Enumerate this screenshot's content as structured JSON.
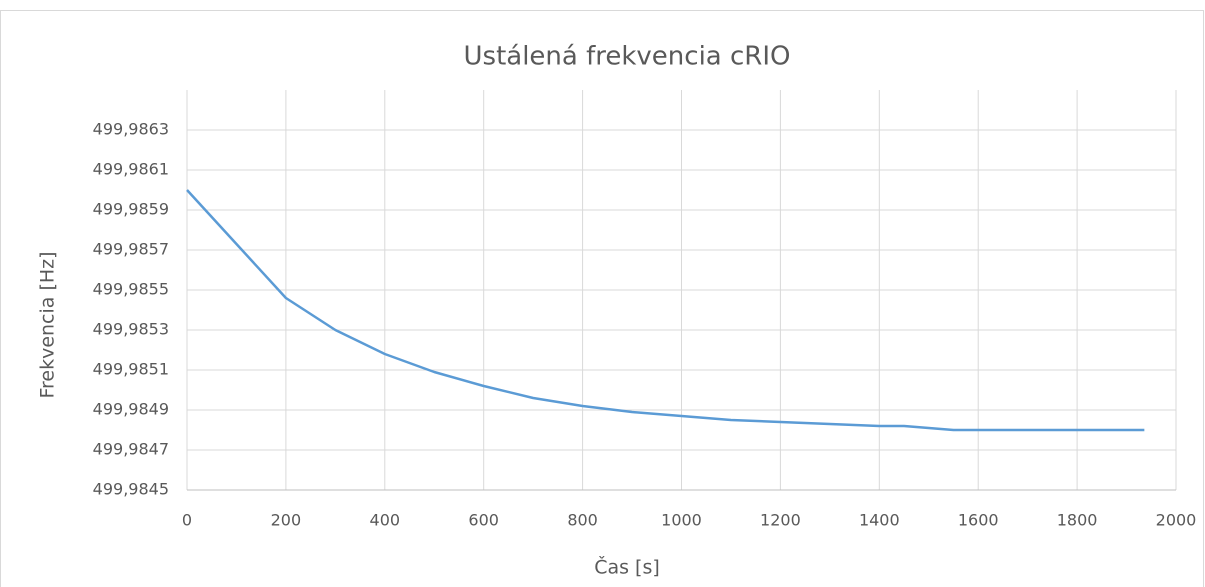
{
  "chart_data": {
    "type": "line",
    "title": "Ustálená frekvencia cRIO",
    "x_label": "Čas [s]",
    "y_label": "Frekvencia [Hz]",
    "x": [
      0,
      100,
      200,
      300,
      400,
      500,
      600,
      700,
      800,
      900,
      1000,
      1100,
      1200,
      1300,
      1400,
      1450,
      1500,
      1550,
      1700,
      1800,
      1936
    ],
    "series": [
      {
        "name": "Frekvencia",
        "color": "#5b9bd5",
        "values": [
          499.986,
          499.98573,
          499.98546,
          499.9853,
          499.98518,
          499.98509,
          499.98502,
          499.98496,
          499.98492,
          499.98489,
          499.98487,
          499.98485,
          499.98484,
          499.98483,
          499.98482,
          499.98482,
          499.98481,
          499.9848,
          499.9848,
          499.9848,
          499.9848
        ]
      }
    ],
    "xlim": [
      0,
      2000
    ],
    "xticks": [
      0,
      200,
      400,
      600,
      800,
      1000,
      1200,
      1400,
      1600,
      1800,
      2000
    ],
    "ylim": [
      499.9845,
      499.9865
    ],
    "yticks": [
      {
        "value": 499.9845,
        "label": "499,9845"
      },
      {
        "value": 499.9847,
        "label": "499,9847"
      },
      {
        "value": 499.9849,
        "label": "499,9849"
      },
      {
        "value": 499.9851,
        "label": "499,9851"
      },
      {
        "value": 499.9853,
        "label": "499,9853"
      },
      {
        "value": 499.9855,
        "label": "499,9855"
      },
      {
        "value": 499.9857,
        "label": "499,9857"
      },
      {
        "value": 499.9859,
        "label": "499,9859"
      },
      {
        "value": 499.9861,
        "label": "499,9861"
      },
      {
        "value": 499.9863,
        "label": "499,9863"
      }
    ],
    "grid": true
  }
}
